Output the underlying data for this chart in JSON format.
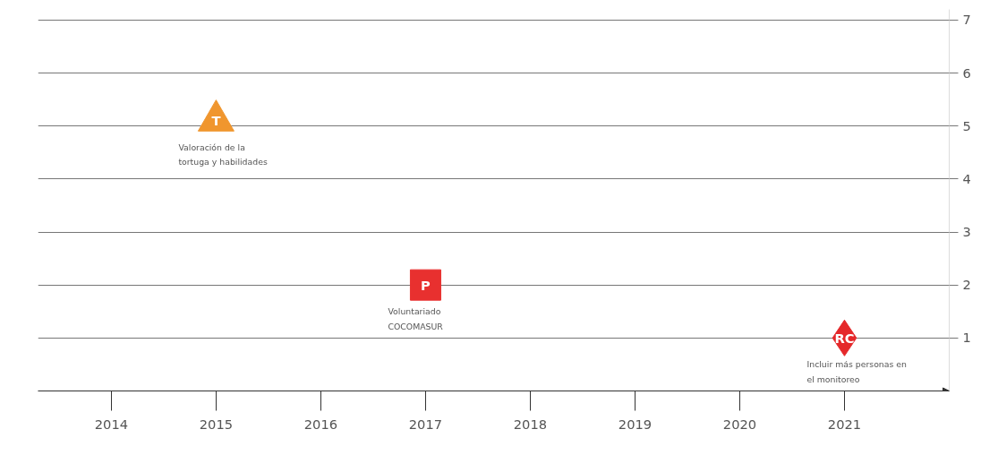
{
  "chart_data": {
    "type": "scatter",
    "series": [
      {
        "name": "Valoración de la\ntortuga y habilidades",
        "color": "#f0962e",
        "marker": "triangle",
        "x": [
          2015
        ],
        "values": [
          5.1
        ],
        "value_labels": [
          "T"
        ]
      },
      {
        "name": "Voluntariado\nCOCOMASUR",
        "color": "#e8302f",
        "marker": "square",
        "x": [
          2017
        ],
        "values": [
          2.0
        ],
        "value_labels": [
          "P"
        ]
      },
      {
        "name": "Incluir más personas en\nel monitoreo",
        "color": "#e5282a",
        "marker": "diamond",
        "x": [
          2021
        ],
        "values": [
          1.0
        ],
        "value_labels": [
          "RC"
        ]
      }
    ],
    "xlim": [
      2013.3,
      2022
    ],
    "xticks": [
      2014,
      2015,
      2016,
      2017,
      2018,
      2019,
      2020,
      2021
    ],
    "ylim": [
      0,
      7.2
    ],
    "yticks": [
      1,
      2,
      3,
      4,
      5,
      6,
      7
    ],
    "grid": "y"
  }
}
